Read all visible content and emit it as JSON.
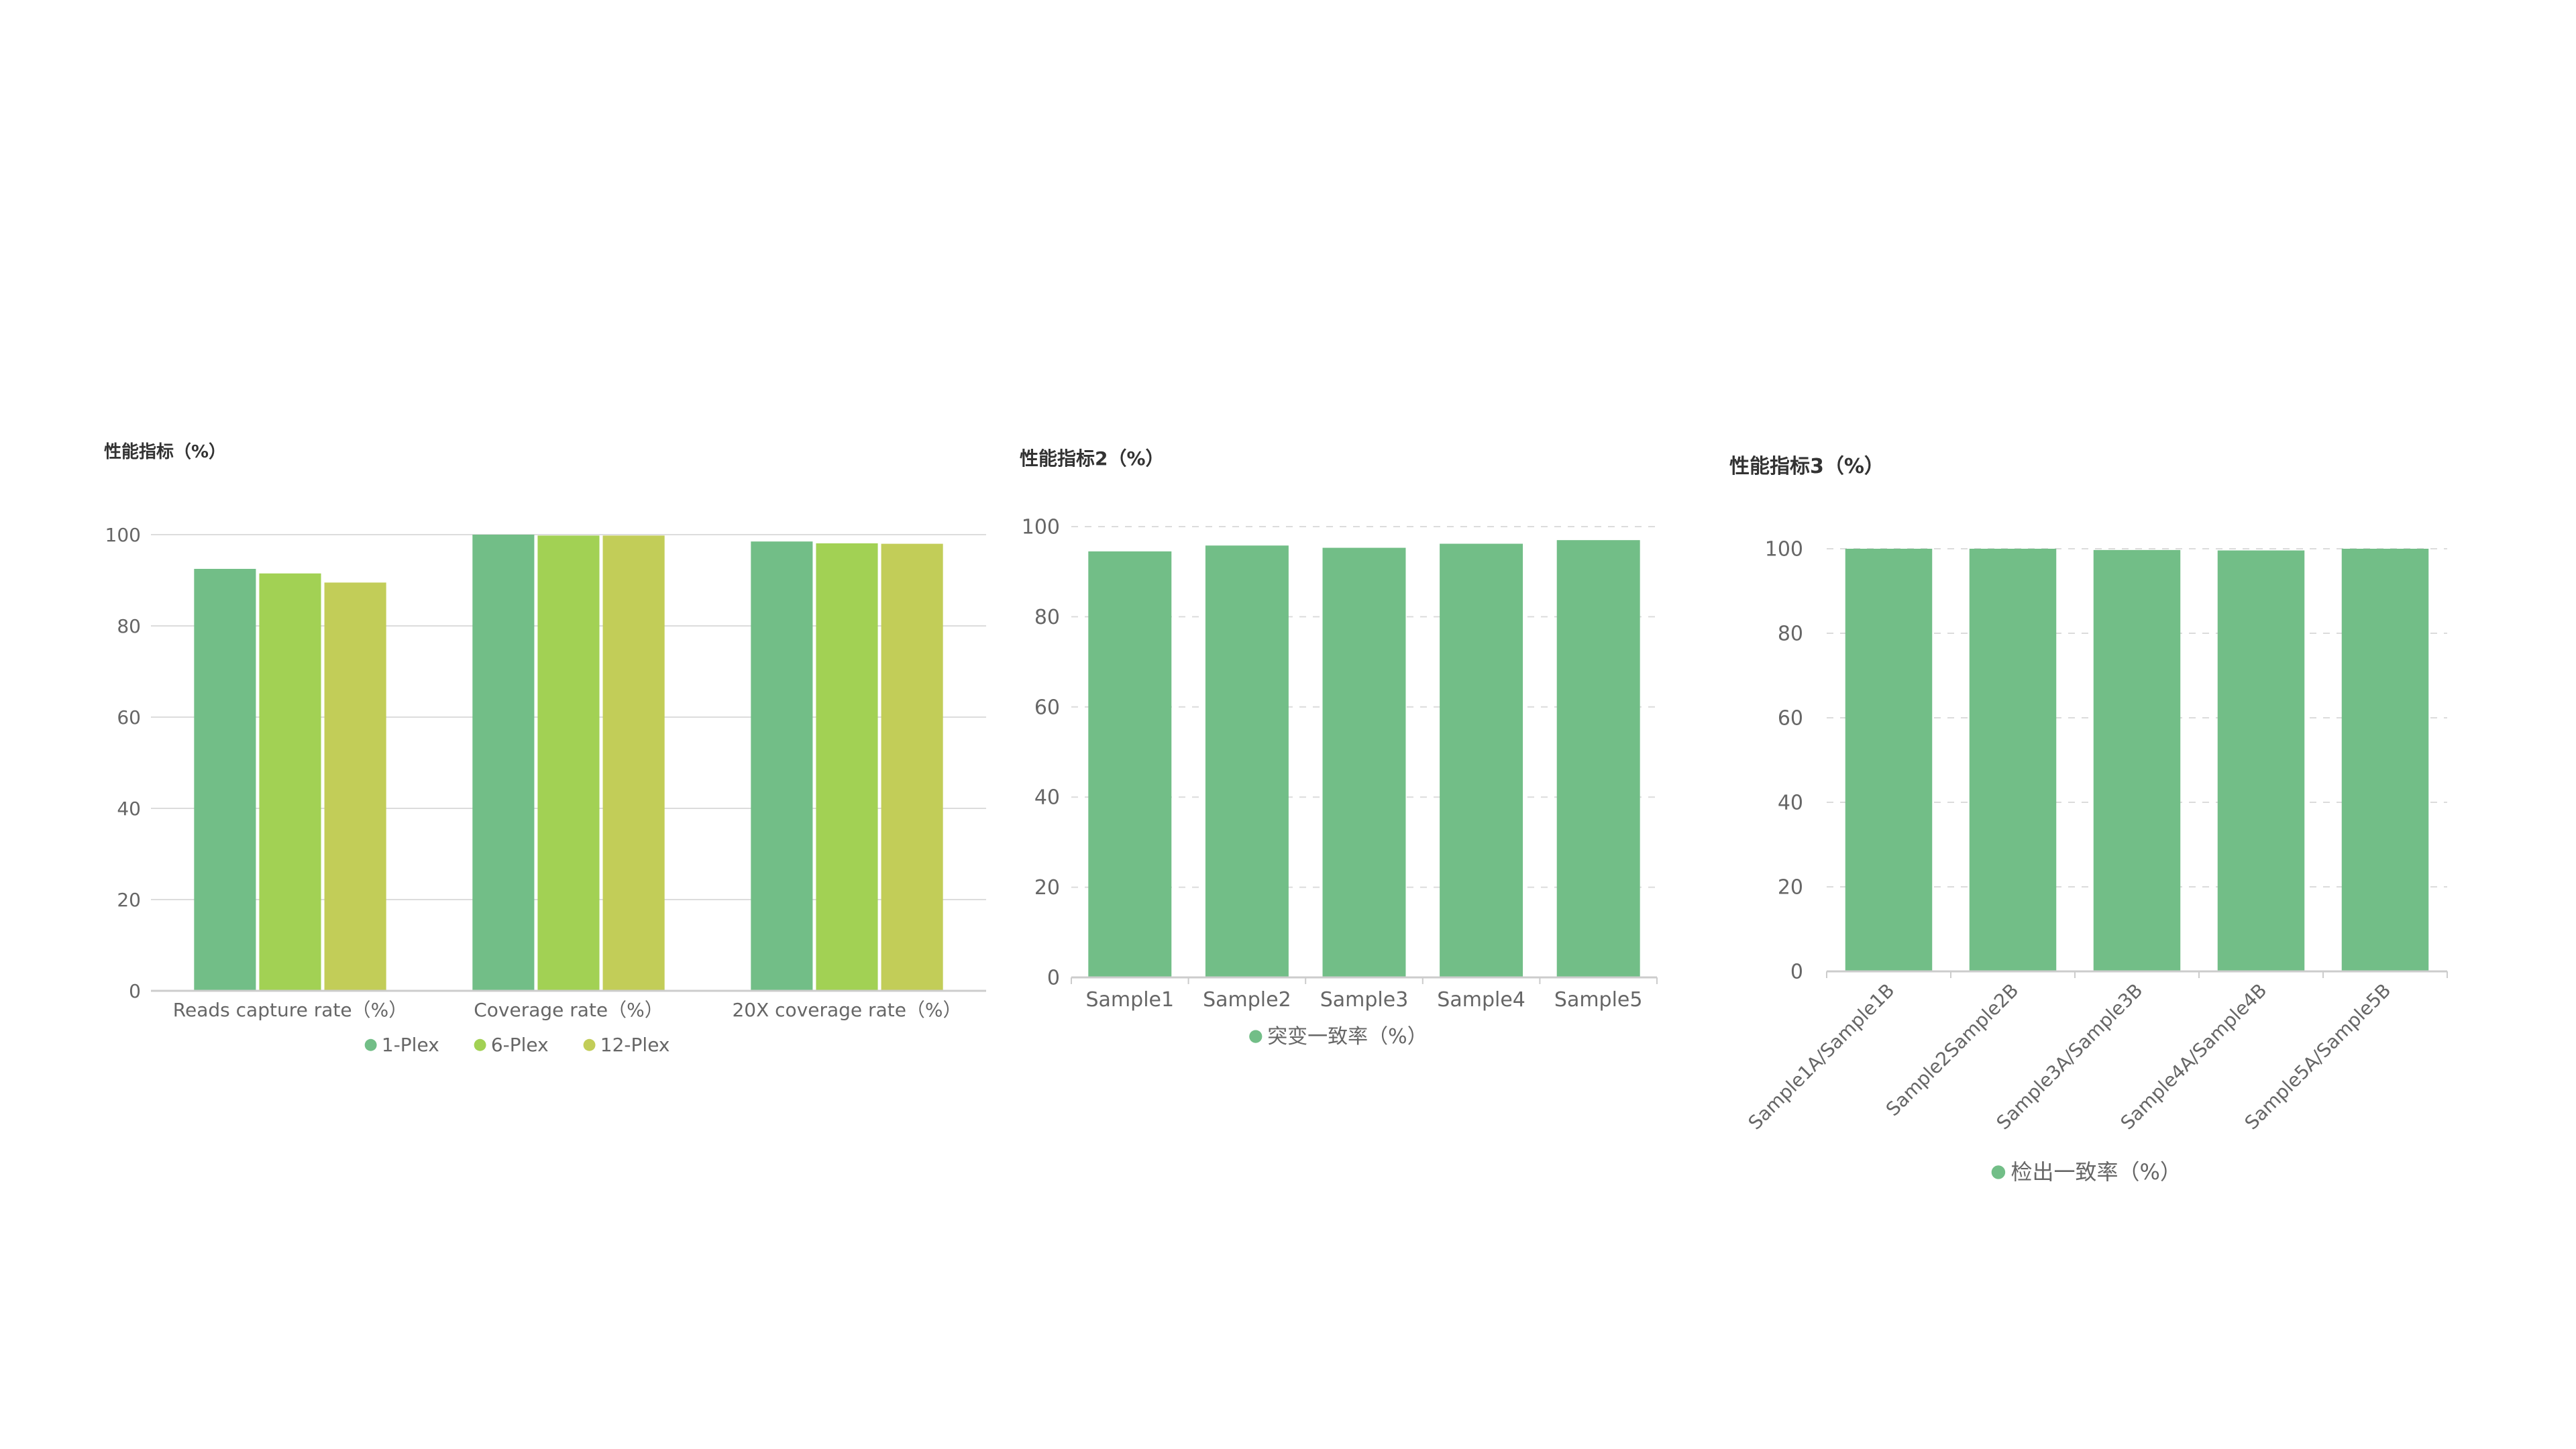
{
  "chart_data": [
    {
      "type": "bar",
      "title": "性能指标（%）",
      "categories": [
        "Reads capture rate（%）",
        "Coverage rate（%）",
        "20X coverage rate（%）"
      ],
      "series": [
        {
          "name": "1-Plex",
          "values": [
            92.5,
            100,
            98.5
          ],
          "color": "#72BE87"
        },
        {
          "name": "6-Plex",
          "values": [
            91.5,
            99.8,
            98.1
          ],
          "color": "#A2D154"
        },
        {
          "name": "12-Plex",
          "values": [
            89.5,
            99.8,
            98.0
          ],
          "color": "#C2CD58"
        }
      ],
      "ylim": [
        0,
        100
      ],
      "yticks": [
        0,
        20,
        40,
        60,
        80,
        100
      ],
      "grid": "solid",
      "legend_position": "bottom-center"
    },
    {
      "type": "bar",
      "title": "性能指标2（%）",
      "categories": [
        "Sample1",
        "Sample2",
        "Sample3",
        "Sample4",
        "Sample5"
      ],
      "series": [
        {
          "name": "突变一致率（%）",
          "values": [
            94.5,
            95.8,
            95.3,
            96.2,
            97.0
          ],
          "color": "#72BE87"
        }
      ],
      "ylim": [
        0,
        100
      ],
      "yticks": [
        0,
        20,
        40,
        60,
        80,
        100
      ],
      "grid": "dashed",
      "legend_position": "bottom-center"
    },
    {
      "type": "bar",
      "title": "性能指标3（%）",
      "categories": [
        "Sample1A/Sample1B",
        "Sample2Sample2B",
        "Sample3A/Sample3B",
        "Sample4A/Sample4B",
        "Sample5A/Sample5B"
      ],
      "series": [
        {
          "name": "检出一致率（%）",
          "values": [
            100,
            100,
            99.7,
            99.6,
            100
          ],
          "color": "#72BE87"
        }
      ],
      "ylim": [
        0,
        100
      ],
      "yticks": [
        0,
        20,
        40,
        60,
        80,
        100
      ],
      "grid": "dashed",
      "xlabel_rotation": "rotated",
      "legend_position": "bottom-center"
    }
  ]
}
